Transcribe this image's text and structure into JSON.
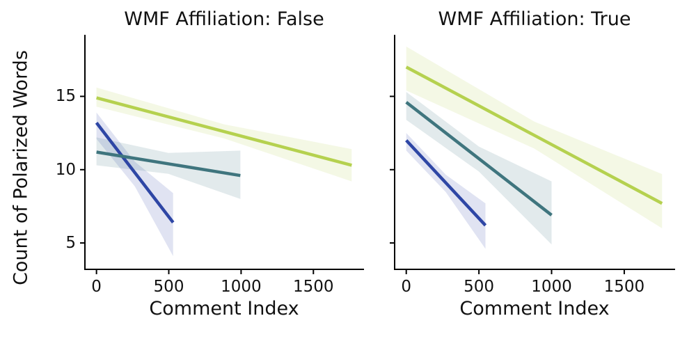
{
  "figure": {
    "background": "#ffffff",
    "text_color": "#111111",
    "spine_color": "#000000"
  },
  "chart_data": {
    "type": "line",
    "subtype": "regression-fit-with-confidence-bands",
    "xlabel": "Comment Index",
    "ylabel": "Count of Polarized Words",
    "x_ticks": [
      0,
      500,
      1000,
      1500
    ],
    "y_ticks": [
      5,
      10,
      15
    ],
    "xlim": [
      -80,
      1850
    ],
    "ylim": [
      3.2,
      19.2
    ],
    "grid": false,
    "legend": null,
    "panels": [
      {
        "title": "WMF Affiliation: False",
        "series": [
          {
            "name": "blue",
            "color": "#2e46a5",
            "x": [
              0,
              530
            ],
            "y": [
              13.2,
              6.4
            ],
            "ci_start": [
              12.1,
              13.9
            ],
            "ci_end": [
              4.1,
              8.4
            ]
          },
          {
            "name": "teal",
            "color": "#3f757e",
            "x": [
              0,
              995
            ],
            "y": [
              11.2,
              9.6
            ],
            "ci_start": [
              10.3,
              12.2
            ],
            "ci_end": [
              8.0,
              11.3
            ]
          },
          {
            "name": "green",
            "color": "#b5d14f",
            "x": [
              0,
              1765
            ],
            "y": [
              14.9,
              10.3
            ],
            "ci_start": [
              14.3,
              15.6
            ],
            "ci_end": [
              9.2,
              11.4
            ]
          }
        ]
      },
      {
        "title": "WMF Affiliation: True",
        "series": [
          {
            "name": "blue",
            "color": "#2e46a5",
            "x": [
              0,
              545
            ],
            "y": [
              12.0,
              6.2
            ],
            "ci_start": [
              11.3,
              12.5
            ],
            "ci_end": [
              4.6,
              7.7
            ]
          },
          {
            "name": "teal",
            "color": "#3f757e",
            "x": [
              0,
              1000
            ],
            "y": [
              14.6,
              6.9
            ],
            "ci_start": [
              13.4,
              15.3
            ],
            "ci_end": [
              4.9,
              9.2
            ]
          },
          {
            "name": "green",
            "color": "#b5d14f",
            "x": [
              0,
              1760
            ],
            "y": [
              17.0,
              7.7
            ],
            "ci_start": [
              15.4,
              18.4
            ],
            "ci_end": [
              6.0,
              9.7
            ]
          }
        ]
      }
    ]
  }
}
